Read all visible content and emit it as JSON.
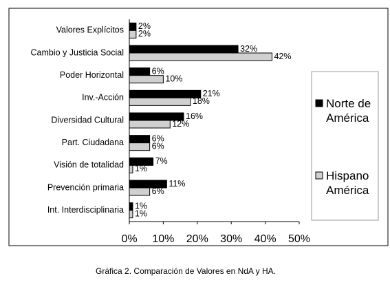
{
  "chart_data": {
    "type": "barh",
    "categories": [
      "Valores Explícitos",
      "Cambio y Justicia Social",
      "Poder Horizontal",
      "Inv.-Acción",
      "Diversidad Cultural",
      "Part. Ciudadana",
      "Visión de totalidad",
      "Prevención primaria",
      "Int. Interdisciplinaria"
    ],
    "series": [
      {
        "name": "Norte de América",
        "color": "#000000",
        "values": [
          2,
          32,
          6,
          21,
          16,
          6,
          7,
          11,
          1
        ],
        "value_labels": [
          "2%",
          "32%",
          "6%",
          "21%",
          "16%",
          "6%",
          "7%",
          "11%",
          "1%"
        ]
      },
      {
        "name": "Hispano América",
        "color": "#d0d0d0",
        "values": [
          2,
          42,
          10,
          18,
          12,
          6,
          1,
          6,
          1
        ],
        "value_labels": [
          "2%",
          "42%",
          "10%",
          "18%",
          "12%",
          "6%",
          "1%",
          "6%",
          "1%"
        ]
      }
    ],
    "xlim": [
      0,
      50
    ],
    "xticks": [
      {
        "value": 0,
        "label": "0%"
      },
      {
        "value": 10,
        "label": "10%"
      },
      {
        "value": 20,
        "label": "20%"
      },
      {
        "value": 30,
        "label": "30%"
      },
      {
        "value": 40,
        "label": "40%"
      },
      {
        "value": 50,
        "label": "50%"
      }
    ],
    "legend": "right",
    "caption": "Gráfica 2. Comparación de Valores en NdA y HA."
  }
}
